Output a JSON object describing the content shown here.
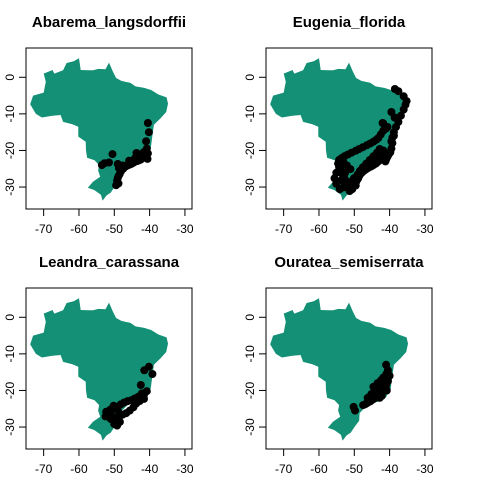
{
  "figure": {
    "land_color": "#139075",
    "point_color": "#000000",
    "frame_color": "#000000"
  },
  "chart_data": [
    {
      "type": "scatter",
      "title": "Abarema_langsdorffii",
      "xlabel": "",
      "ylabel": "",
      "xlim": [
        -75,
        -28
      ],
      "ylim": [
        -36,
        8
      ],
      "xticks": [
        -70,
        -60,
        -50,
        -40,
        -30
      ],
      "yticks": [
        0,
        -10,
        -20,
        -30
      ],
      "series": [
        {
          "x": [
            -40.5,
            -40.2,
            -41,
            -40.8,
            -40.5,
            -41.2,
            -40.6,
            -41.8,
            -42.5,
            -42.2,
            -43,
            -43.5,
            -44,
            -44.5,
            -45,
            -45.5,
            -46,
            -46.5,
            -47,
            -47.5,
            -48,
            -48.2,
            -48.5,
            -48.8,
            -49,
            -49.2,
            -48.8,
            -49.5,
            -49,
            -48.7,
            -50.5,
            -51.5,
            -52.8,
            -53.5,
            -41.7,
            -42.9,
            -44.2,
            -45.8,
            -47.6,
            -43.7
          ],
          "y": [
            -12.5,
            -15,
            -17.5,
            -19.5,
            -20.8,
            -21.5,
            -22.3,
            -22,
            -22.5,
            -21.8,
            -22.7,
            -22.9,
            -23,
            -23.3,
            -23.6,
            -23.8,
            -24,
            -24.2,
            -24.5,
            -25,
            -25.3,
            -25.8,
            -26.5,
            -27,
            -27.5,
            -28.3,
            -29,
            -29.5,
            -23.7,
            -24.8,
            -21,
            -23.3,
            -23.5,
            -24,
            -20.5,
            -21.5,
            -22.2,
            -22.8,
            -24.1,
            -20.7
          ]
        }
      ]
    },
    {
      "type": "scatter",
      "title": "Eugenia_florida",
      "xlabel": "",
      "ylabel": "",
      "xlim": [
        -75,
        -28
      ],
      "ylim": [
        -36,
        8
      ],
      "xticks": [
        -70,
        -60,
        -50,
        -40,
        -30
      ],
      "yticks": [
        0,
        -10,
        -20,
        -30
      ],
      "series": [
        {
          "x": [
            -38.5,
            -37.5,
            -36,
            -35.2,
            -35.5,
            -36,
            -36.8,
            -37.5,
            -38.2,
            -38.8,
            -39.2,
            -39.2,
            -39.5,
            -39.8,
            -40.2,
            -40.5,
            -40.8,
            -41,
            -41.2,
            -41.5,
            -41.8,
            -42.3,
            -42.8,
            -43.2,
            -43.8,
            -44.3,
            -44.8,
            -45.3,
            -45.8,
            -46.3,
            -46.8,
            -47.3,
            -47.8,
            -48.3,
            -48.6,
            -48.9,
            -49.2,
            -49.5,
            -49.8,
            -50.2,
            -50.8,
            -51.3,
            -51.8,
            -52.3,
            -52.8,
            -53.3,
            -53.8,
            -54.3,
            -54.6,
            -54.3,
            -53.6,
            -52.8,
            -51.8,
            -50.8,
            -49.6,
            -48.6,
            -47.6,
            -46.5,
            -45.5,
            -44.6,
            -43.8,
            -43.2,
            -42.5,
            -41.8,
            -40.6,
            -41.8,
            -42.8,
            -43.6,
            -44.6,
            -45.6,
            -46.6,
            -47.6,
            -48.4,
            -49.1,
            -50.1,
            -51.1,
            -52.1,
            -53.1,
            -54.1,
            -55.1,
            -55.6,
            -55.1,
            -54.1,
            -53.1,
            -52.1,
            -51.1,
            -52.6,
            -53.6,
            -52.1,
            -51.3,
            -50.6,
            -49.6,
            -39.5,
            -38.6,
            -42,
            -41,
            -39.5,
            -38.8
          ],
          "y": [
            -3.2,
            -3.8,
            -5.2,
            -6.5,
            -7.5,
            -8.8,
            -10.5,
            -12.2,
            -13.6,
            -15,
            -16.5,
            -18,
            -19.5,
            -20.5,
            -21,
            -21.5,
            -22,
            -22.5,
            -23,
            -21.5,
            -20,
            -21.8,
            -22.6,
            -23,
            -23.5,
            -23.8,
            -24.1,
            -24.4,
            -24.6,
            -24.9,
            -25.2,
            -25.6,
            -26,
            -26.5,
            -27,
            -27.6,
            -28.1,
            -28.6,
            -29.1,
            -29.6,
            -30.1,
            -30.6,
            -29.6,
            -28.6,
            -27.6,
            -26.6,
            -25.6,
            -24.6,
            -23.6,
            -22.6,
            -22.1,
            -21.6,
            -21.1,
            -20.6,
            -20.1,
            -19.6,
            -19.1,
            -18.6,
            -18.1,
            -17.6,
            -17.1,
            -16.6,
            -15.6,
            -14.6,
            -13.6,
            -12.6,
            -19.6,
            -20.6,
            -21.6,
            -22.6,
            -23.6,
            -24.6,
            -25.6,
            -26.6,
            -27.6,
            -28.6,
            -29.6,
            -30.1,
            -30.6,
            -29.1,
            -27.6,
            -26.1,
            -24.6,
            -23.1,
            -24.1,
            -25.1,
            -26.1,
            -28.1,
            -30.1,
            -31.1,
            -30.6,
            -29.6,
            -9.5,
            -11,
            -12.5,
            -14,
            -17.5,
            -16
          ]
        }
      ]
    },
    {
      "type": "scatter",
      "title": "Leandra_carassana",
      "xlabel": "",
      "ylabel": "",
      "xlim": [
        -75,
        -28
      ],
      "ylim": [
        -36,
        8
      ],
      "xticks": [
        -70,
        -60,
        -50,
        -40,
        -30
      ],
      "yticks": [
        0,
        -10,
        -20,
        -30
      ],
      "series": [
        {
          "x": [
            -40.2,
            -41.5,
            -39.2,
            -42.5,
            -40.8,
            -41.6,
            -42.2,
            -43.2,
            -44.2,
            -45.2,
            -46.2,
            -47.2,
            -48.2,
            -49.2,
            -50.2,
            -51.2,
            -52.3,
            -51.8,
            -50.7,
            -49.6,
            -48.6,
            -47.6,
            -46.6,
            -45.6,
            -44.6,
            -43.8,
            -42.5,
            -48.8,
            -49.5,
            -50,
            -49.2,
            -48.4,
            -51,
            -52.5,
            -50.2,
            -49,
            -41.6,
            -42.8
          ],
          "y": [
            -13.5,
            -14.5,
            -15.5,
            -18.5,
            -20.2,
            -21.2,
            -20.8,
            -21.7,
            -22.2,
            -22.7,
            -22.9,
            -23.3,
            -23.8,
            -24.5,
            -25,
            -25.3,
            -25.8,
            -26.6,
            -27,
            -27.5,
            -27.2,
            -26.6,
            -26.2,
            -25.5,
            -24.6,
            -23.6,
            -22.5,
            -28.2,
            -28.8,
            -29.2,
            -29.6,
            -28.6,
            -27.8,
            -27.1,
            -24.2,
            -25.5,
            -22.3,
            -22.9
          ]
        }
      ]
    },
    {
      "type": "scatter",
      "title": "Ouratea_semiserrata",
      "xlabel": "",
      "ylabel": "",
      "xlim": [
        -75,
        -28
      ],
      "ylim": [
        -36,
        8
      ],
      "xticks": [
        -70,
        -60,
        -50,
        -40,
        -30
      ],
      "yticks": [
        0,
        -10,
        -20,
        -30
      ],
      "series": [
        {
          "x": [
            -41,
            -40.5,
            -40,
            -40.5,
            -41.5,
            -41,
            -42,
            -41.5,
            -40.8,
            -42.5,
            -43,
            -43.5,
            -42.2,
            -42.8,
            -44,
            -44.5,
            -45,
            -45.5,
            -46,
            -46.5,
            -47,
            -47.5,
            -43.2,
            -44.2,
            -45.2,
            -46.2,
            -41.8,
            -42.4,
            -43.4,
            -44.6,
            -40.9,
            -50.2,
            -49.8
          ],
          "y": [
            -13,
            -14.5,
            -16,
            -17.5,
            -17,
            -18.5,
            -18,
            -19.5,
            -20,
            -19.5,
            -20.5,
            -21,
            -21.5,
            -22,
            -21.8,
            -22.3,
            -22.6,
            -23,
            -23.2,
            -23.5,
            -23.8,
            -24,
            -19,
            -20,
            -21,
            -22,
            -16.5,
            -17.2,
            -18,
            -19,
            -15.5,
            -24.5,
            -25.5
          ]
        }
      ]
    }
  ]
}
